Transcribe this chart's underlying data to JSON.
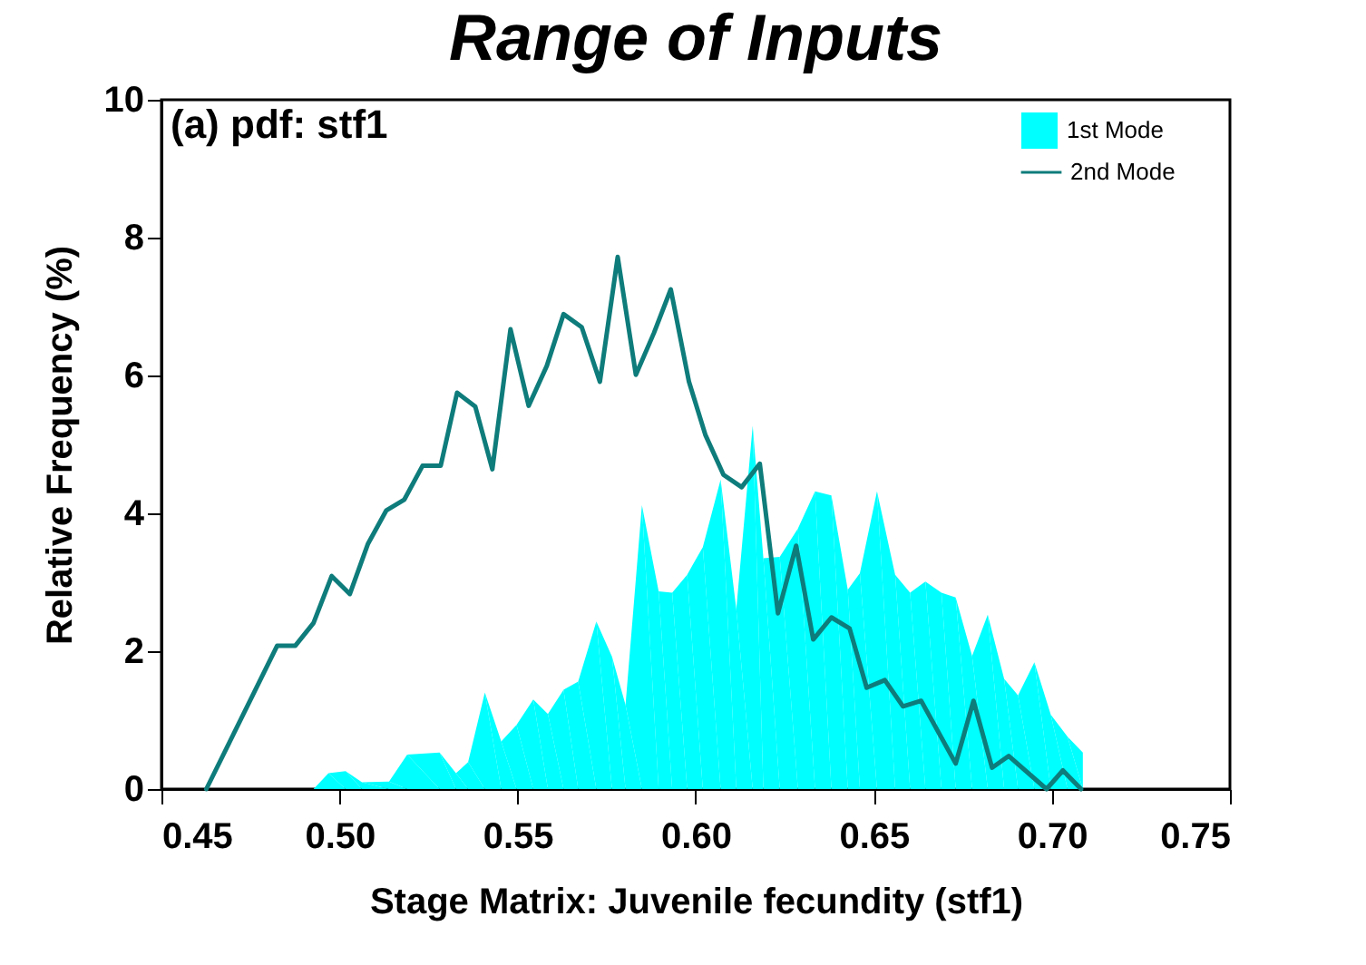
{
  "chart_data": {
    "type": "area",
    "title": "Range of Inputs",
    "xlabel": "Stage Matrix: Juvenile fecundity (stf1)",
    "ylabel": "Relative Frequency (%)",
    "annotations": [
      "(a) pdf: stf1"
    ],
    "series": [
      {
        "name": "1st Mode",
        "color": "#00ffff",
        "x": [
          0.4927,
          0.4969,
          0.5017,
          0.5063,
          0.5139,
          0.519,
          0.5281,
          0.5327,
          0.5361,
          0.5408,
          0.5454,
          0.5497,
          0.5544,
          0.5585,
          0.5629,
          0.567,
          0.5721,
          0.5765,
          0.5803,
          0.5849,
          0.5896,
          0.5934,
          0.5976,
          0.602,
          0.607,
          0.6114,
          0.616,
          0.619,
          0.6236,
          0.6287,
          0.6335,
          0.6381,
          0.6427,
          0.6461,
          0.6509,
          0.656,
          0.6602,
          0.6645,
          0.669,
          0.673,
          0.6776,
          0.682,
          0.6866,
          0.6905,
          0.6951,
          0.6997,
          0.7044,
          0.7087
        ],
        "values": [
          0,
          0.23,
          0.26,
          0.1,
          0.11,
          0.5,
          0.53,
          0.23,
          0.39,
          1.4,
          0.69,
          0.93,
          1.3,
          1.09,
          1.44,
          1.56,
          2.43,
          1.92,
          1.22,
          4.12,
          2.87,
          2.85,
          3.11,
          3.51,
          4.49,
          2.61,
          5.27,
          3.35,
          3.37,
          3.78,
          4.32,
          4.26,
          2.89,
          3.13,
          4.32,
          3.11,
          2.85,
          3.01,
          2.85,
          2.78,
          1.93,
          2.53,
          1.6,
          1.36,
          1.84,
          1.08,
          0.76,
          0.53
        ]
      },
      {
        "name": "2nd Mode",
        "type": "line",
        "color": "#0e7c7b",
        "x": [
          0.4626,
          0.4825,
          0.4876,
          0.4927,
          0.4978,
          0.5029,
          0.508,
          0.5131,
          0.5182,
          0.5233,
          0.5284,
          0.533,
          0.5381,
          0.5429,
          0.548,
          0.5531,
          0.5582,
          0.5629,
          0.568,
          0.5731,
          0.5781,
          0.5832,
          0.5883,
          0.593,
          0.5981,
          0.6027,
          0.6078,
          0.6129,
          0.618,
          0.6231,
          0.6282,
          0.633,
          0.6381,
          0.6432,
          0.648,
          0.6531,
          0.6582,
          0.6633,
          0.673,
          0.678,
          0.6832,
          0.6879,
          0.6985,
          0.7031,
          0.7082
        ],
        "values": [
          0,
          2.08,
          2.08,
          2.41,
          3.09,
          2.83,
          3.56,
          4.04,
          4.2,
          4.69,
          4.69,
          5.75,
          5.55,
          4.64,
          6.67,
          5.56,
          6.14,
          6.89,
          6.7,
          5.91,
          7.72,
          6.01,
          6.62,
          7.25,
          5.91,
          5.14,
          4.56,
          4.38,
          4.72,
          2.55,
          3.53,
          2.17,
          2.49,
          2.33,
          1.47,
          1.58,
          1.2,
          1.28,
          0.37,
          1.28,
          0.31,
          0.48,
          0,
          0.27,
          0
        ]
      }
    ],
    "xlim": [
      0.45,
      0.75
    ],
    "xticks": [
      0.45,
      {
        "value": 0.5,
        "label": "0.50"
      },
      0.55,
      {
        "value": 0.6,
        "label": "0.60"
      },
      0.65,
      {
        "value": 0.7,
        "label": "0.70"
      },
      0.75
    ],
    "ylim": [
      0,
      10
    ],
    "yticks": [
      0,
      2,
      4,
      6,
      8,
      10
    ],
    "legend": "top right",
    "line_style": "solid"
  }
}
